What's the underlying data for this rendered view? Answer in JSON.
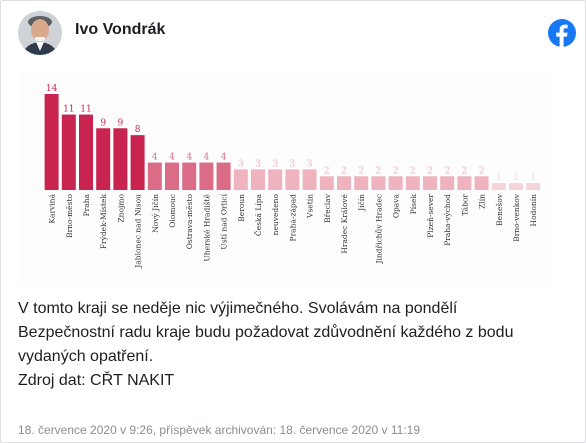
{
  "post": {
    "author": "Ivo Vondrák",
    "text_lines": [
      "V tomto kraji se neděje nic výjimečného. Svolávám na pondělí",
      "Bezpečnostní radu kraje budu požadovat zdůvodnění každého z bodu",
      "vydaných opatření.",
      "Zdroj dat: CŘT NAKIT"
    ],
    "footer": "18. července 2020 v 9:26, příspěvek archivován: 18. července 2020 v 11:19"
  },
  "icons": {
    "avatar": "author-avatar",
    "brand": "facebook-icon"
  },
  "colors": {
    "high": "#c9234f",
    "mid": "#da6c87",
    "low": "#eeb3bf",
    "lowest": "#f4d3d9",
    "brand": "#1877f2"
  },
  "chart_data": {
    "type": "bar",
    "categories": [
      "Karviná",
      "Brno-město",
      "Praha",
      "Frýdek-Místek",
      "Znojmo",
      "Jablonec nad Nisou",
      "Nový Jičín",
      "Olomouc",
      "Ostrava-město",
      "Uherské Hradiště",
      "Ústí nad Orlicí",
      "Beroun",
      "Česká Lípa",
      "neuvedeno",
      "Praha-západ",
      "Vsetín",
      "Břeclav",
      "Hradec Králové",
      "Jičín",
      "Jindřichův Hradec",
      "Opava",
      "Písek",
      "Plzeň-sever",
      "Praha-východ",
      "Tábor",
      "Zlín",
      "Benešov",
      "Brno-venkov",
      "Hodonín"
    ],
    "values": [
      14,
      11,
      11,
      9,
      9,
      8,
      4,
      4,
      4,
      4,
      4,
      3,
      3,
      3,
      3,
      3,
      2,
      2,
      2,
      2,
      2,
      2,
      2,
      2,
      2,
      2,
      1,
      1,
      1
    ],
    "ylim": [
      0,
      14
    ],
    "grid": false,
    "title": "",
    "xlabel": "",
    "ylabel": ""
  }
}
